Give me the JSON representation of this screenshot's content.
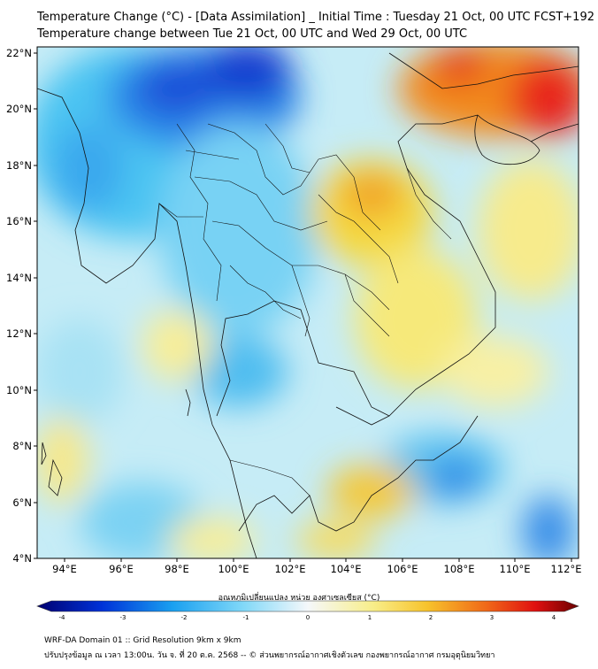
{
  "title": {
    "line1": "Temperature Change (°C) - [Data Assimilation] _ Initial Time : Tuesday 21 Oct, 00 UTC FCST+192",
    "line2": "Temperature change between Tue 21 Oct, 00 UTC and Wed 29 Oct, 00 UTC"
  },
  "axes": {
    "lat_labels": [
      "22°N",
      "20°N",
      "18°N",
      "16°N",
      "14°N",
      "12°N",
      "10°N",
      "8°N",
      "6°N",
      "4°N"
    ],
    "lon_labels": [
      "94°E",
      "96°E",
      "98°E",
      "100°E",
      "102°E",
      "104°E",
      "106°E",
      "108°E",
      "110°E",
      "112°E"
    ]
  },
  "colorbar": {
    "title": "อุณหภูมิเปลี่ยนแปลง หน่วย องศาเซลเซียส (°C)",
    "tick_labels": [
      "-4",
      "-3",
      "-2",
      "-1",
      "0",
      "1",
      "2",
      "3",
      "4"
    ],
    "colors": {
      "min": "#000080",
      "cold": "#0050e0",
      "cool": "#1fb6f0",
      "neutral": "#f4f8fb",
      "warm": "#f7e24a",
      "hot": "#f08a18",
      "max": "#7a0000"
    }
  },
  "footer": {
    "line1": "WRF-DA Domain 01 :: Grid Resolution 9km x 9km",
    "line2": "ปรับปรุงข้อมูล ณ เวลา 13:00น. วัน จ. ที่ 20 ต.ค. 2568 -- © ส่วนพยากรณ์อากาศเชิงตัวเลข กองพยากรณ์อากาศ กรมอุตุนิยมวิทยา"
  }
}
